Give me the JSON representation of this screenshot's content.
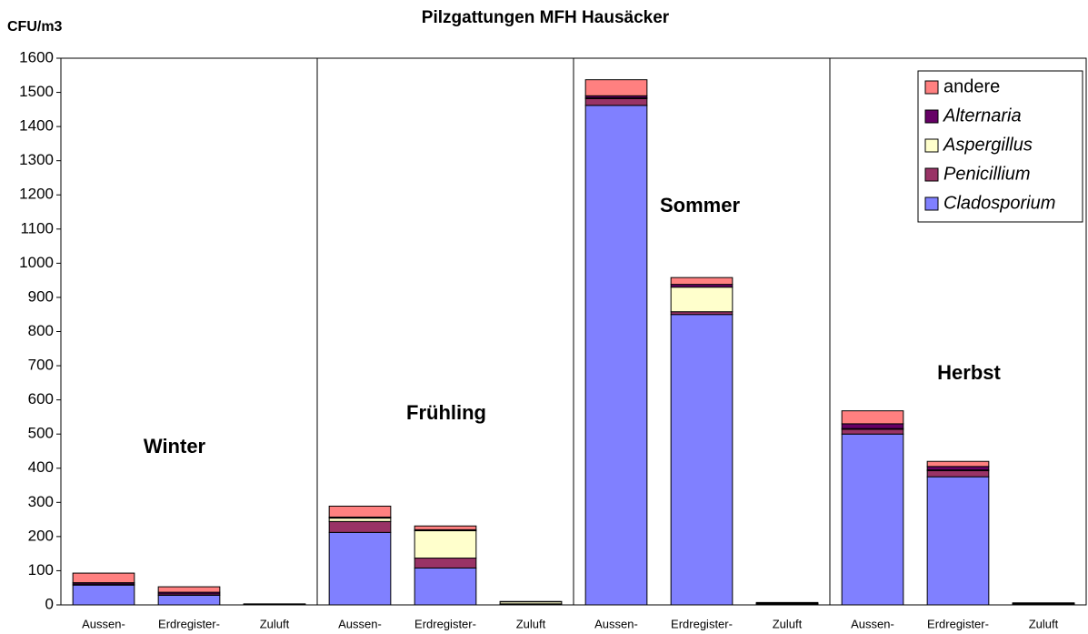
{
  "chart_data": {
    "type": "stacked_bar",
    "title": "Pilzgattungen MFH Hausäcker",
    "y_label": "CFU/m3",
    "categories": [
      "Aussen-",
      "Erdregister-",
      "Zuluft",
      "Aussen-",
      "Erdregister-",
      "Zuluft",
      "Aussen-",
      "Erdregister-",
      "Zuluft",
      "Aussen-",
      "Erdregister-",
      "Zuluft"
    ],
    "annotations": [
      "Winter",
      "Frühling",
      "Sommer",
      "Herbst"
    ],
    "series": [
      {
        "name": "Cladosporium",
        "color": "#8080ff",
        "values": [
          58,
          28,
          1,
          212,
          108,
          2,
          1462,
          850,
          2,
          500,
          375,
          2
        ]
      },
      {
        "name": "Penicillium",
        "color": "#993366",
        "values": [
          3,
          4,
          1,
          32,
          29,
          1,
          20,
          8,
          1,
          14,
          18,
          1
        ]
      },
      {
        "name": "Aspergillus",
        "color": "#ffffcc",
        "values": [
          0,
          0,
          0,
          10,
          80,
          6,
          2,
          72,
          1,
          2,
          2,
          1
        ]
      },
      {
        "name": "Alternaria",
        "color": "#660066",
        "values": [
          4,
          5,
          0,
          3,
          3,
          0,
          6,
          8,
          1,
          14,
          10,
          1
        ]
      },
      {
        "name": "andere",
        "color": "#ff8080",
        "values": [
          28,
          16,
          1,
          32,
          11,
          1,
          47,
          20,
          2,
          38,
          15,
          1
        ]
      }
    ],
    "ylim": [
      0,
      1600
    ],
    "yticks": [
      0,
      100,
      200,
      300,
      400,
      500,
      600,
      700,
      800,
      900,
      1000,
      1100,
      1200,
      1300,
      1400,
      1500,
      1600
    ],
    "grid": false,
    "legend": "upper right"
  }
}
